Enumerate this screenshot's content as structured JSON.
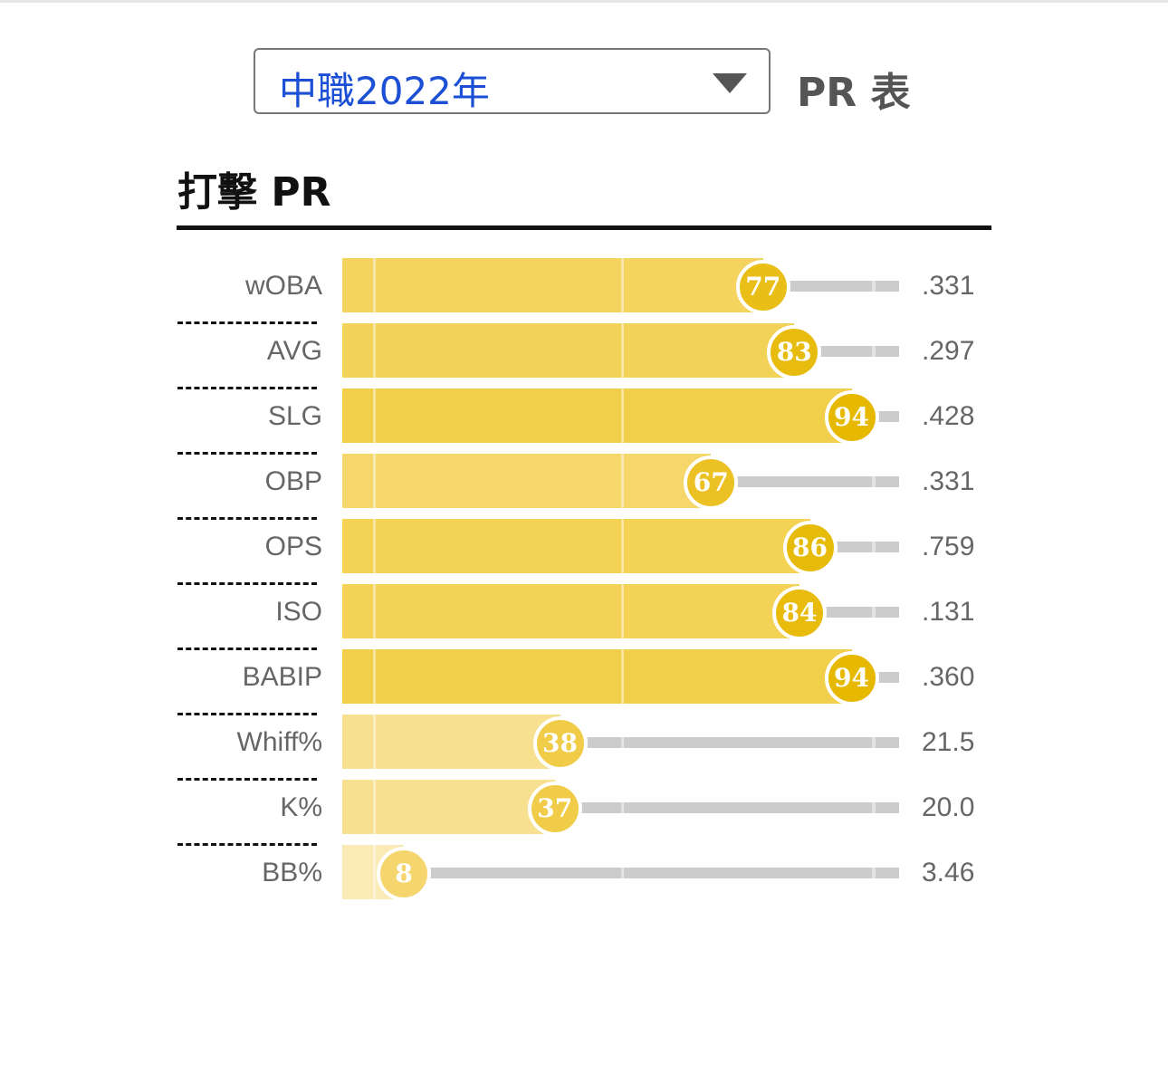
{
  "header": {
    "season_select": "中職2022年",
    "table_label": "PR 表"
  },
  "section": {
    "title": "打擊 PR"
  },
  "chart_data": {
    "type": "bar",
    "orientation": "horizontal",
    "xlim": [
      0,
      100
    ],
    "categories": [
      "wOBA",
      "AVG",
      "SLG",
      "OBP",
      "OPS",
      "ISO",
      "BABIP",
      "Whiff%",
      "K%",
      "BB%"
    ],
    "values": [
      77,
      83,
      94,
      67,
      86,
      84,
      94,
      38,
      37,
      8
    ],
    "stat_values": [
      ".331",
      ".297",
      ".428",
      ".331",
      ".759",
      ".131",
      ".360",
      "21.5",
      "20.0",
      "3.46"
    ],
    "colors": {
      "bar_high": "#f2cf4a",
      "bar_low": "#faeab5",
      "dot_high": "#e6b800",
      "dot_low": "#f5d66e",
      "track": "#cccccc"
    }
  }
}
